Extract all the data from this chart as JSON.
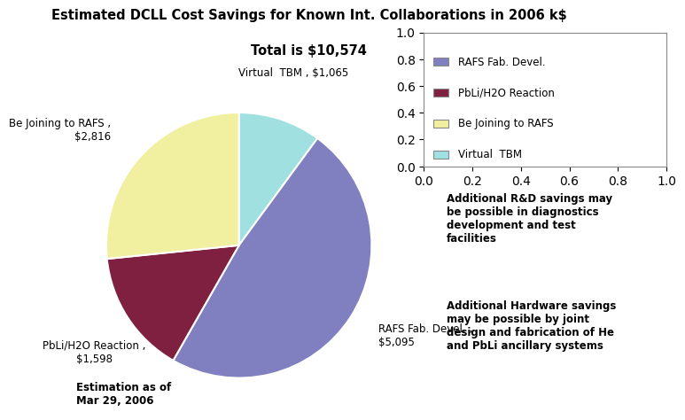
{
  "title_line1": "Estimated DCLL Cost Savings for Known Int. Collaborations in 2006 k$",
  "title_line2": "Total is $10,574",
  "slices_cw": [
    {
      "label": "Virtual  TBM",
      "value": 1065,
      "color": "#A0E0E0"
    },
    {
      "label": "RAFS Fab. Devel.",
      "value": 5095,
      "color": "#8080C0"
    },
    {
      "label": "PbLi/H2O Reaction",
      "value": 1598,
      "color": "#802040"
    },
    {
      "label": "Be Joining to RAFS",
      "value": 2816,
      "color": "#F0F0A0"
    }
  ],
  "legend_labels": [
    "RAFS Fab. Devel.",
    "PbLi/H2O Reaction",
    "Be Joining to RAFS",
    "Virtual  TBM"
  ],
  "legend_colors": [
    "#8080C0",
    "#802040",
    "#F0F0A0",
    "#A0E0E0"
  ],
  "annotation1": "Additional R&D savings may\nbe possible in diagnostics\ndevelopment and test\nfacilities",
  "annotation2": "Additional Hardware savings\nmay be possible by joint\ndesign and fabrication of He\nand PbLi ancillary systems",
  "bottom_left": "Estimation as of\nMar 29, 2006",
  "bg_color": "#FFFFFF",
  "pie_labels": [
    {
      "text": "Virtual  TBM , $1,065",
      "ha": "center",
      "va": "bottom"
    },
    {
      "text": "RAFS Fab. Devel. ,\n$5,095",
      "ha": "left",
      "va": "center"
    },
    {
      "text": "PbLi/H2O Reaction ,\n$1,598",
      "ha": "center",
      "va": "top"
    },
    {
      "text": "Be Joining to RAFS ,\n$2,816",
      "ha": "right",
      "va": "center"
    }
  ]
}
